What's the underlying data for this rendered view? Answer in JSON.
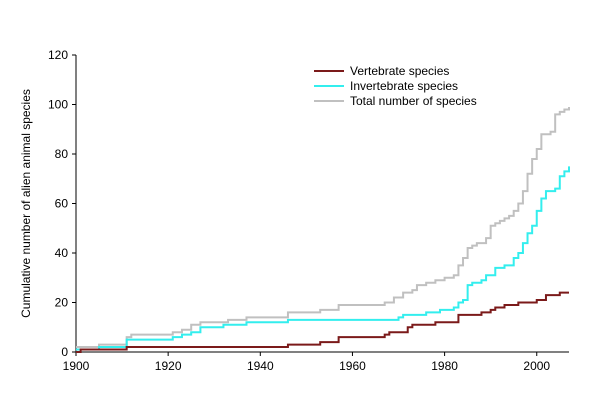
{
  "chart_data": {
    "type": "line",
    "title": "",
    "xlabel": "",
    "ylabel": "Cumulative number of alien animal species",
    "xlim": [
      1900,
      2007
    ],
    "ylim": [
      0,
      120
    ],
    "x_ticks": [
      "1900",
      "1920",
      "1940",
      "1960",
      "1980",
      "2000"
    ],
    "y_ticks": [
      "0",
      "20",
      "40",
      "60",
      "80",
      "100",
      "120"
    ],
    "grid": false,
    "legend_position": "top-right",
    "step": true,
    "series": [
      {
        "name": "Vertebrate species",
        "color": "#7b1a1a",
        "points": [
          [
            1900,
            0
          ],
          [
            1901,
            1
          ],
          [
            1911,
            1
          ],
          [
            1911,
            2
          ],
          [
            1945,
            2
          ],
          [
            1946,
            3
          ],
          [
            1952,
            3
          ],
          [
            1953,
            4
          ],
          [
            1956,
            4
          ],
          [
            1957,
            6
          ],
          [
            1966,
            6
          ],
          [
            1967,
            7
          ],
          [
            1968,
            8
          ],
          [
            1971,
            8
          ],
          [
            1972,
            10
          ],
          [
            1973,
            11
          ],
          [
            1977,
            11
          ],
          [
            1978,
            12
          ],
          [
            1982,
            12
          ],
          [
            1983,
            15
          ],
          [
            1987,
            15
          ],
          [
            1988,
            16
          ],
          [
            1990,
            17
          ],
          [
            1991,
            18
          ],
          [
            1993,
            19
          ],
          [
            1996,
            20
          ],
          [
            1999,
            20
          ],
          [
            2000,
            21
          ],
          [
            2002,
            23
          ],
          [
            2005,
            24
          ],
          [
            2007,
            24
          ]
        ]
      },
      {
        "name": "Invertebrate species",
        "color": "#33eeee",
        "points": [
          [
            1900,
            1
          ],
          [
            1905,
            2
          ],
          [
            1910,
            2
          ],
          [
            1911,
            5
          ],
          [
            1920,
            5
          ],
          [
            1921,
            6
          ],
          [
            1923,
            7
          ],
          [
            1925,
            8
          ],
          [
            1927,
            10
          ],
          [
            1932,
            11
          ],
          [
            1935,
            11
          ],
          [
            1937,
            12
          ],
          [
            1945,
            12
          ],
          [
            1946,
            13
          ],
          [
            1969,
            13
          ],
          [
            1970,
            14
          ],
          [
            1971,
            15
          ],
          [
            1976,
            16
          ],
          [
            1979,
            17
          ],
          [
            1982,
            18
          ],
          [
            1983,
            20
          ],
          [
            1984,
            21
          ],
          [
            1985,
            27
          ],
          [
            1986,
            28
          ],
          [
            1988,
            29
          ],
          [
            1989,
            31
          ],
          [
            1991,
            34
          ],
          [
            1993,
            35
          ],
          [
            1995,
            38
          ],
          [
            1996,
            40
          ],
          [
            1997,
            44
          ],
          [
            1998,
            48
          ],
          [
            1999,
            51
          ],
          [
            2000,
            57
          ],
          [
            2001,
            62
          ],
          [
            2002,
            65
          ],
          [
            2004,
            66
          ],
          [
            2005,
            71
          ],
          [
            2006,
            73
          ],
          [
            2007,
            75
          ]
        ]
      },
      {
        "name": "Total number of species",
        "color": "#c0c0c0",
        "points": [
          [
            1900,
            2
          ],
          [
            1905,
            3
          ],
          [
            1910,
            3
          ],
          [
            1911,
            6
          ],
          [
            1912,
            7
          ],
          [
            1920,
            7
          ],
          [
            1921,
            8
          ],
          [
            1923,
            9
          ],
          [
            1925,
            11
          ],
          [
            1927,
            12
          ],
          [
            1932,
            12
          ],
          [
            1933,
            13
          ],
          [
            1937,
            14
          ],
          [
            1945,
            14
          ],
          [
            1946,
            16
          ],
          [
            1952,
            16
          ],
          [
            1953,
            17
          ],
          [
            1956,
            17
          ],
          [
            1957,
            19
          ],
          [
            1966,
            19
          ],
          [
            1967,
            20
          ],
          [
            1969,
            22
          ],
          [
            1971,
            24
          ],
          [
            1973,
            25
          ],
          [
            1974,
            27
          ],
          [
            1976,
            28
          ],
          [
            1978,
            29
          ],
          [
            1980,
            30
          ],
          [
            1982,
            31
          ],
          [
            1983,
            35
          ],
          [
            1984,
            38
          ],
          [
            1985,
            42
          ],
          [
            1986,
            43
          ],
          [
            1987,
            44
          ],
          [
            1989,
            46
          ],
          [
            1990,
            51
          ],
          [
            1991,
            52
          ],
          [
            1992,
            53
          ],
          [
            1993,
            54
          ],
          [
            1994,
            55
          ],
          [
            1995,
            57
          ],
          [
            1996,
            60
          ],
          [
            1997,
            65
          ],
          [
            1998,
            72
          ],
          [
            1999,
            78
          ],
          [
            2000,
            82
          ],
          [
            2001,
            88
          ],
          [
            2003,
            89
          ],
          [
            2004,
            96
          ],
          [
            2005,
            97
          ],
          [
            2006,
            98
          ],
          [
            2007,
            99
          ]
        ]
      }
    ]
  }
}
